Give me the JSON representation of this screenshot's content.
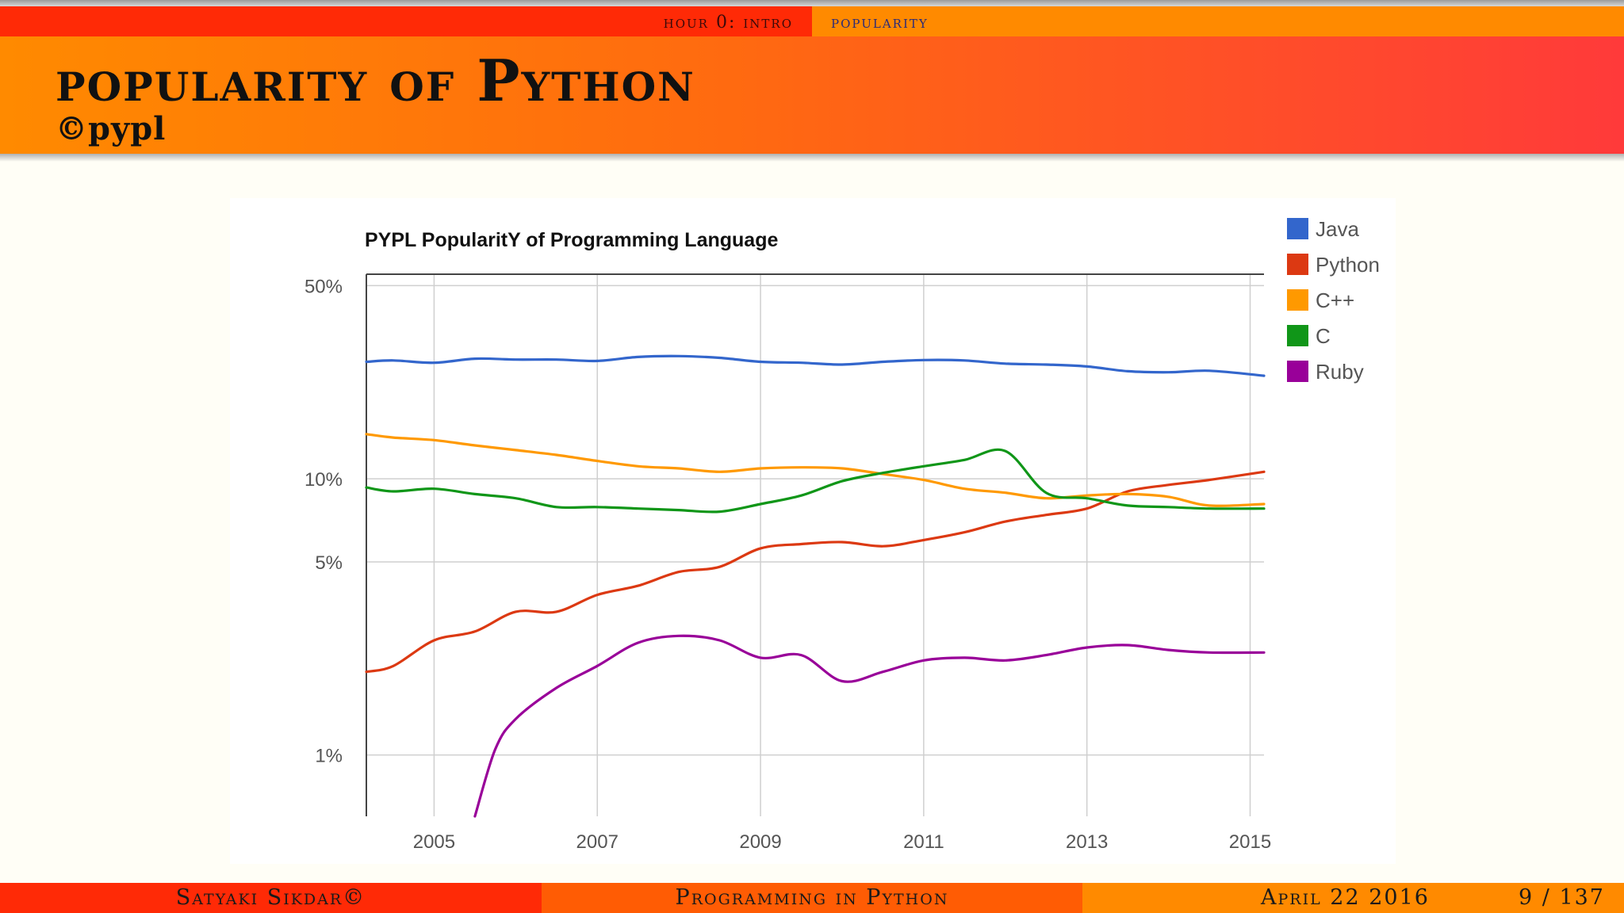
{
  "nav": {
    "section": "hour 0: intro",
    "subsection": "popularity"
  },
  "slide": {
    "title": "popularity of Python",
    "subtitle": "©pypl"
  },
  "footer": {
    "author": "Satyaki Sikdar©",
    "course": "Programming in Python",
    "date": "April 22 2016",
    "page": "9 / 137"
  },
  "colors": {
    "Java": "#3366cc",
    "Python": "#dc3912",
    "C++": "#ff9900",
    "C": "#109618",
    "Ruby": "#990099",
    "nav_left": "#ff2a06",
    "nav_right": "#ff8a00"
  },
  "chart_data": {
    "type": "line",
    "title": "PYPL PopularitY of Programming Language",
    "xlabel": "",
    "ylabel": "",
    "yscale": "log",
    "y_ticks": [
      1,
      5,
      10,
      50
    ],
    "y_tick_labels": [
      "1%",
      "5%",
      "10%",
      "50%"
    ],
    "x_ticks": [
      2005,
      2007,
      2009,
      2011,
      2013,
      2015
    ],
    "xlim": [
      2004.17,
      2015.17
    ],
    "ylim": [
      0.6,
      55
    ],
    "grid": true,
    "legend_position": "right",
    "series": [
      {
        "name": "Java",
        "x": [
          2004.17,
          2004.5,
          2005,
          2005.5,
          2006,
          2006.5,
          2007,
          2007.5,
          2008,
          2008.5,
          2009,
          2009.5,
          2010,
          2010.5,
          2011,
          2011.5,
          2012,
          2012.5,
          2013,
          2013.5,
          2014,
          2014.5,
          2015.17
        ],
        "values": [
          26.5,
          26.8,
          26.3,
          27.2,
          27.0,
          27.0,
          26.7,
          27.6,
          27.8,
          27.4,
          26.5,
          26.3,
          25.9,
          26.5,
          26.9,
          26.8,
          26.1,
          25.9,
          25.5,
          24.5,
          24.3,
          24.6,
          23.6
        ]
      },
      {
        "name": "Python",
        "x": [
          2004.17,
          2004.5,
          2005,
          2005.5,
          2006,
          2006.5,
          2007,
          2007.5,
          2008,
          2008.5,
          2009,
          2009.5,
          2010,
          2010.5,
          2011,
          2011.5,
          2012,
          2012.5,
          2013,
          2013.5,
          2014,
          2014.5,
          2015.17
        ],
        "values": [
          2.0,
          2.1,
          2.6,
          2.8,
          3.3,
          3.3,
          3.8,
          4.1,
          4.6,
          4.8,
          5.6,
          5.8,
          5.9,
          5.7,
          6.0,
          6.4,
          7.0,
          7.4,
          7.8,
          9.0,
          9.5,
          9.9,
          10.6
        ]
      },
      {
        "name": "C++",
        "x": [
          2004.17,
          2004.5,
          2005,
          2005.5,
          2006,
          2006.5,
          2007,
          2007.5,
          2008,
          2008.5,
          2009,
          2009.5,
          2010,
          2010.5,
          2011,
          2011.5,
          2012,
          2012.5,
          2013,
          2013.5,
          2014,
          2014.5,
          2015.17
        ],
        "values": [
          14.5,
          14.1,
          13.8,
          13.2,
          12.7,
          12.2,
          11.6,
          11.1,
          10.9,
          10.6,
          10.9,
          11.0,
          10.9,
          10.4,
          9.9,
          9.2,
          8.9,
          8.5,
          8.7,
          8.8,
          8.6,
          8.0,
          8.1
        ]
      },
      {
        "name": "C",
        "x": [
          2004.17,
          2004.5,
          2005,
          2005.5,
          2006,
          2006.5,
          2007,
          2007.5,
          2008,
          2008.5,
          2009,
          2009.5,
          2010,
          2010.5,
          2011,
          2011.5,
          2012,
          2012.5,
          2013,
          2013.5,
          2014,
          2014.5,
          2015.17
        ],
        "values": [
          9.3,
          9.0,
          9.2,
          8.8,
          8.5,
          7.9,
          7.9,
          7.8,
          7.7,
          7.6,
          8.1,
          8.7,
          9.8,
          10.5,
          11.1,
          11.7,
          12.6,
          8.9,
          8.5,
          8.0,
          7.9,
          7.8,
          7.8
        ]
      },
      {
        "name": "Ruby",
        "x": [
          2005.5,
          2005.75,
          2006,
          2006.5,
          2007,
          2007.5,
          2008,
          2008.5,
          2009,
          2009.5,
          2010,
          2010.5,
          2011,
          2011.5,
          2012,
          2012.5,
          2013,
          2013.5,
          2014,
          2014.5,
          2015.17
        ],
        "values": [
          0.6,
          1.05,
          1.35,
          1.75,
          2.1,
          2.55,
          2.7,
          2.6,
          2.25,
          2.3,
          1.85,
          2.0,
          2.2,
          2.25,
          2.2,
          2.3,
          2.45,
          2.5,
          2.4,
          2.35,
          2.35
        ]
      }
    ]
  }
}
